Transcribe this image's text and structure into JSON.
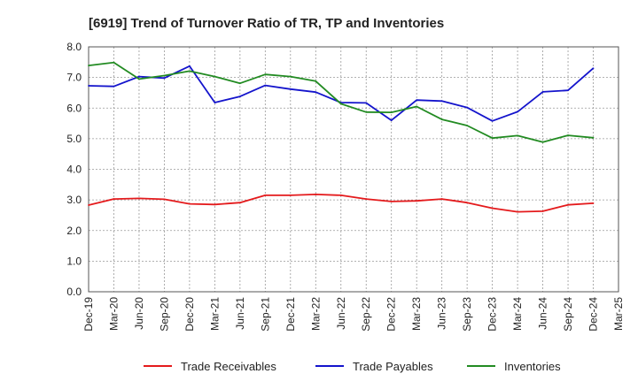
{
  "chart_data": {
    "type": "line",
    "title": "[6919]  Trend of Turnover Ratio of TR, TP and Inventories",
    "xlabel": "",
    "ylabel": "",
    "ylim": [
      0,
      8
    ],
    "yticks": [
      "0.0",
      "1.0",
      "2.0",
      "3.0",
      "4.0",
      "5.0",
      "6.0",
      "7.0",
      "8.0"
    ],
    "categories": [
      "Dec-19",
      "Mar-20",
      "Jun-20",
      "Sep-20",
      "Dec-20",
      "Mar-21",
      "Jun-21",
      "Sep-21",
      "Dec-21",
      "Mar-22",
      "Jun-22",
      "Sep-22",
      "Dec-22",
      "Mar-23",
      "Jun-23",
      "Sep-23",
      "Dec-23",
      "Mar-24",
      "Jun-24",
      "Sep-24",
      "Dec-24",
      "Mar-25"
    ],
    "grid": true,
    "legend_position": "bottom",
    "series": [
      {
        "name": "Trade Receivables",
        "color": "#e41a1c",
        "values": [
          2.83,
          3.03,
          3.05,
          3.02,
          2.87,
          2.85,
          2.91,
          3.15,
          3.15,
          3.18,
          3.15,
          3.03,
          2.95,
          2.97,
          3.03,
          2.91,
          2.73,
          2.61,
          2.63,
          2.84,
          2.89,
          null
        ]
      },
      {
        "name": "Trade Payables",
        "color": "#1414cc",
        "values": [
          6.73,
          6.71,
          7.03,
          6.98,
          7.37,
          6.18,
          6.38,
          6.74,
          6.62,
          6.52,
          6.18,
          6.17,
          5.6,
          6.26,
          6.23,
          6.02,
          5.58,
          5.88,
          6.53,
          6.58,
          7.3,
          null
        ]
      },
      {
        "name": "Inventories",
        "color": "#228b22",
        "values": [
          7.39,
          7.49,
          6.95,
          7.06,
          7.21,
          7.03,
          6.81,
          7.1,
          7.03,
          6.88,
          6.14,
          5.87,
          5.86,
          6.05,
          5.63,
          5.43,
          5.02,
          5.1,
          4.89,
          5.11,
          5.03,
          null
        ]
      }
    ]
  }
}
